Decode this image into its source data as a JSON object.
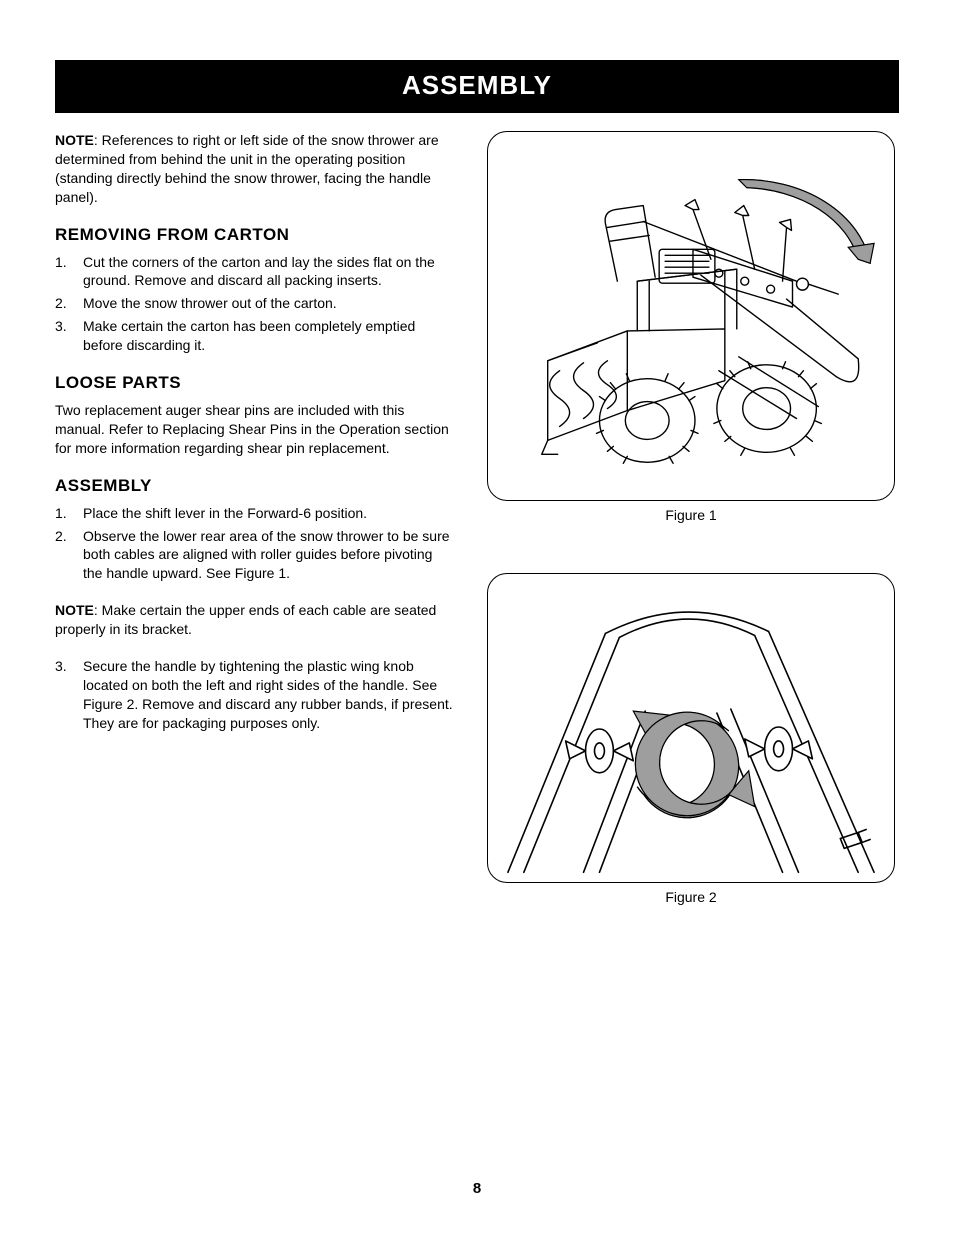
{
  "banner": "ASSEMBLY",
  "intro_note_bold": "NOTE",
  "intro_note_text": ": References to right or left side of the snow thrower are determined from behind the unit in the operating position (standing directly behind the snow thrower, facing the handle panel).",
  "section_removing": "REMOVING FROM CARTON",
  "removing_steps": [
    "Cut the corners of the carton and lay the sides flat on the ground. Remove and discard all packing inserts.",
    "Move the snow thrower out of the carton.",
    "Make certain the carton has been completely emptied before discarding it."
  ],
  "section_loose": "LOOSE PARTS",
  "loose_text": "Two replacement auger shear pins are included with this manual. Refer to Replacing Shear Pins in the Operation section for more information regarding shear pin replacement.",
  "section_assembly": "ASSEMBLY",
  "assembly_steps_a": [
    "Place the shift lever in the Forward-6 position.",
    "Observe the lower rear area of the snow thrower to be sure both cables are aligned with roller guides before pivoting the handle upward. See Figure 1."
  ],
  "mid_note_bold": "NOTE",
  "mid_note_text": ": Make certain the upper ends of each cable are seated properly in its bracket.",
  "assembly_steps_b_start": 3,
  "assembly_steps_b": [
    "Secure the handle by tightening the plastic wing knob located on both the left and right sides of the handle. See Figure 2. Remove and discard any rubber bands, if present. They are for packaging purposes only."
  ],
  "figure1_caption": "Figure 1",
  "figure2_caption": "Figure 2",
  "page_number": "8",
  "colors": {
    "banner_bg": "#000000",
    "banner_fg": "#ffffff",
    "text": "#000000",
    "line": "#000000",
    "arrow_fill": "#9e9e9e",
    "arrow_stroke": "#000000",
    "page_bg": "#ffffff"
  }
}
